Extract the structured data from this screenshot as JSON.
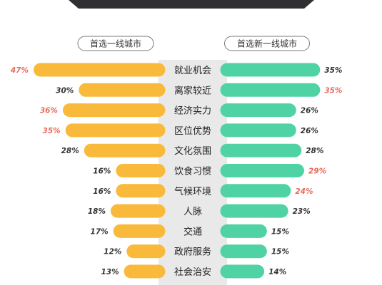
{
  "chart_data": {
    "type": "bar",
    "title": "",
    "categories": [
      "就业机会",
      "离家较近",
      "经济实力",
      "区位优势",
      "文化氛围",
      "饮食习惯",
      "气候环境",
      "人脉",
      "交通",
      "政府服务",
      "社会治安"
    ],
    "series": [
      {
        "name": "首选一线城市",
        "values": [
          47,
          30,
          36,
          35,
          28,
          16,
          16,
          18,
          17,
          12,
          13
        ],
        "labels": [
          "47%",
          "30%",
          "36%",
          "35%",
          "28%",
          "16%",
          "16%",
          "18%",
          "17%",
          "12%",
          "13%"
        ],
        "color": "#f9b93a"
      },
      {
        "name": "首选新一线城市",
        "values": [
          35,
          35,
          26,
          26,
          28,
          29,
          24,
          23,
          15,
          15,
          14
        ],
        "labels": [
          "35%",
          "35%",
          "26%",
          "26%",
          "28%",
          "29%",
          "24%",
          "23%",
          "15%",
          "15%",
          "14%"
        ],
        "color": "#50d3a4"
      }
    ],
    "highlight_color": "#e86a5a",
    "highlighted": [
      [
        0,
        2,
        3
      ],
      [
        1,
        5,
        6
      ]
    ],
    "label_color": "#333333",
    "category_band_color": "#e9e9ea",
    "header_bar_color": "#2f2f33",
    "xlim": [
      0,
      50
    ]
  }
}
